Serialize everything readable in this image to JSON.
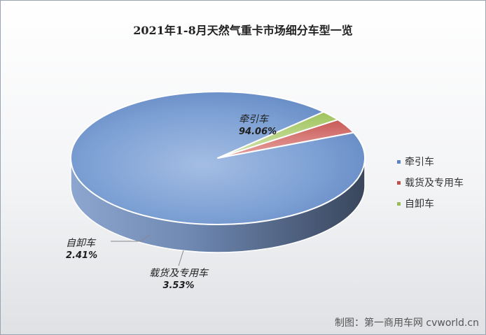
{
  "chart_data": {
    "type": "pie",
    "title": "2021年1-8月天然气重卡市场细分车型一览",
    "categories": [
      "牵引车",
      "载货及专用车",
      "自卸车"
    ],
    "values": [
      94.06,
      3.53,
      2.41
    ],
    "value_labels": [
      "94.06%",
      "3.53%",
      "2.41%"
    ],
    "colors": [
      "#5b84c4",
      "#c0504d",
      "#9bbb59"
    ],
    "style": "3d",
    "legend_position": "right"
  },
  "watermark": "制图：第一商用车网 cvworld.cn"
}
